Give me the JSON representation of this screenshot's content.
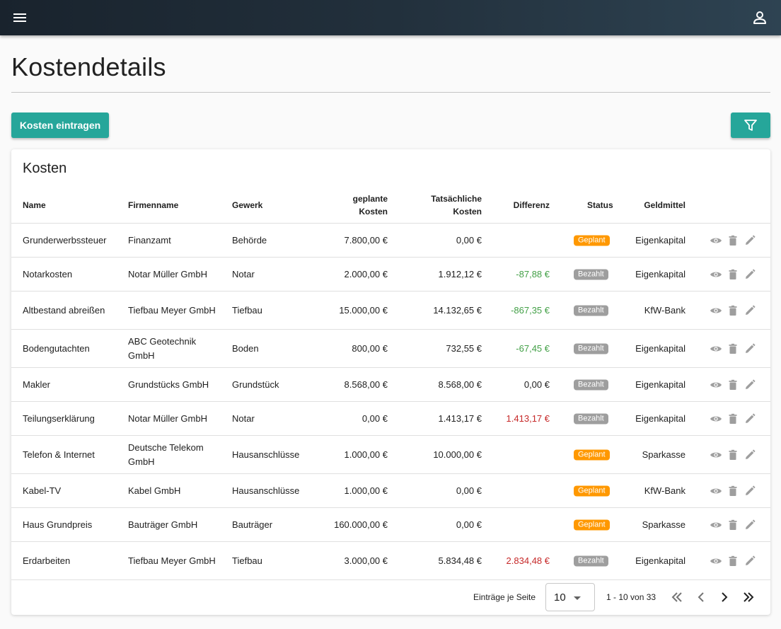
{
  "header": {
    "menu_icon": "menu-icon",
    "user_icon": "account-icon"
  },
  "page": {
    "title": "Kostendetails"
  },
  "toolbar": {
    "add_button_label": "Kosten eintragen",
    "filter_icon": "filter-icon"
  },
  "colors": {
    "accent": "#26a69a",
    "planned": "#ff9800",
    "paid": "#9e9e9e",
    "positive": "#43a047",
    "negative": "#c62828"
  },
  "table": {
    "title": "Kosten",
    "columns": {
      "name": "Name",
      "company": "Firmenname",
      "trade": "Gewerk",
      "planned_1": "geplante",
      "planned_2": "Kosten",
      "actual_1": "Tatsächliche",
      "actual_2": "Kosten",
      "difference": "Differenz",
      "status": "Status",
      "funds": "Geldmittel"
    },
    "rows": [
      {
        "name": "Grunderwerbssteuer",
        "company": "Finanzamt",
        "trade": "Behörde",
        "planned": "7.800,00 €",
        "actual": "0,00 €",
        "difference": "",
        "diff_type": "none",
        "status": "Geplant",
        "status_type": "planned",
        "funds": "Eigenkapital"
      },
      {
        "name": "Notarkosten",
        "company": "Notar Müller GmbH",
        "trade": "Notar",
        "planned": "2.000,00 €",
        "actual": "1.912,12 €",
        "difference": "-87,88 €",
        "diff_type": "pos",
        "status": "Bezahlt",
        "status_type": "paid",
        "funds": "Eigenkapital"
      },
      {
        "name": "Altbestand abreißen",
        "company": "Tiefbau Meyer GmbH",
        "trade": "Tiefbau",
        "planned": "15.000,00 €",
        "actual": "14.132,65 €",
        "difference": "-867,35 €",
        "diff_type": "pos",
        "status": "Bezahlt",
        "status_type": "paid",
        "funds": "KfW-Bank"
      },
      {
        "name": "Bodengutachten",
        "company": "ABC Geotechnik GmbH",
        "trade": "Boden",
        "planned": "800,00 €",
        "actual": "732,55 €",
        "difference": "-67,45 €",
        "diff_type": "pos",
        "status": "Bezahlt",
        "status_type": "paid",
        "funds": "Eigenkapital"
      },
      {
        "name": "Makler",
        "company": "Grundstücks GmbH",
        "trade": "Grundstück",
        "planned": "8.568,00 €",
        "actual": "8.568,00 €",
        "difference": "0,00 €",
        "diff_type": "zero",
        "status": "Bezahlt",
        "status_type": "paid",
        "funds": "Eigenkapital"
      },
      {
        "name": "Teilungserklärung",
        "company": "Notar Müller GmbH",
        "trade": "Notar",
        "planned": "0,00 €",
        "actual": "1.413,17 €",
        "difference": "1.413,17 €",
        "diff_type": "neg",
        "status": "Bezahlt",
        "status_type": "paid",
        "funds": "Eigenkapital"
      },
      {
        "name": "Telefon & Internet",
        "company": "Deutsche Telekom GmbH",
        "trade": "Hausanschlüsse",
        "planned": "1.000,00 €",
        "actual": "10.000,00 €",
        "difference": "",
        "diff_type": "none",
        "status": "Geplant",
        "status_type": "planned",
        "funds": "Sparkasse"
      },
      {
        "name": "Kabel-TV",
        "company": "Kabel GmbH",
        "trade": "Hausanschlüsse",
        "planned": "1.000,00 €",
        "actual": "0,00 €",
        "difference": "",
        "diff_type": "none",
        "status": "Geplant",
        "status_type": "planned",
        "funds": "KfW-Bank"
      },
      {
        "name": "Haus Grundpreis",
        "company": "Bauträger GmbH",
        "trade": "Bauträger",
        "planned": "160.000,00 €",
        "actual": "0,00 €",
        "difference": "",
        "diff_type": "none",
        "status": "Geplant",
        "status_type": "planned",
        "funds": "Sparkasse"
      },
      {
        "name": "Erdarbeiten",
        "company": "Tiefbau Meyer GmbH",
        "trade": "Tiefbau",
        "planned": "3.000,00 €",
        "actual": "5.834,48 €",
        "difference": "2.834,48 €",
        "diff_type": "neg",
        "status": "Bezahlt",
        "status_type": "paid",
        "funds": "Eigenkapital"
      }
    ],
    "row_actions": [
      "eye-icon",
      "delete-icon",
      "edit-icon"
    ]
  },
  "pagination": {
    "per_page_label": "Einträge je Seite",
    "per_page_value": "10",
    "range_label": "1 - 10 von 33",
    "icons": [
      "first-page-icon",
      "previous-page-icon",
      "next-page-icon",
      "last-page-icon"
    ]
  }
}
